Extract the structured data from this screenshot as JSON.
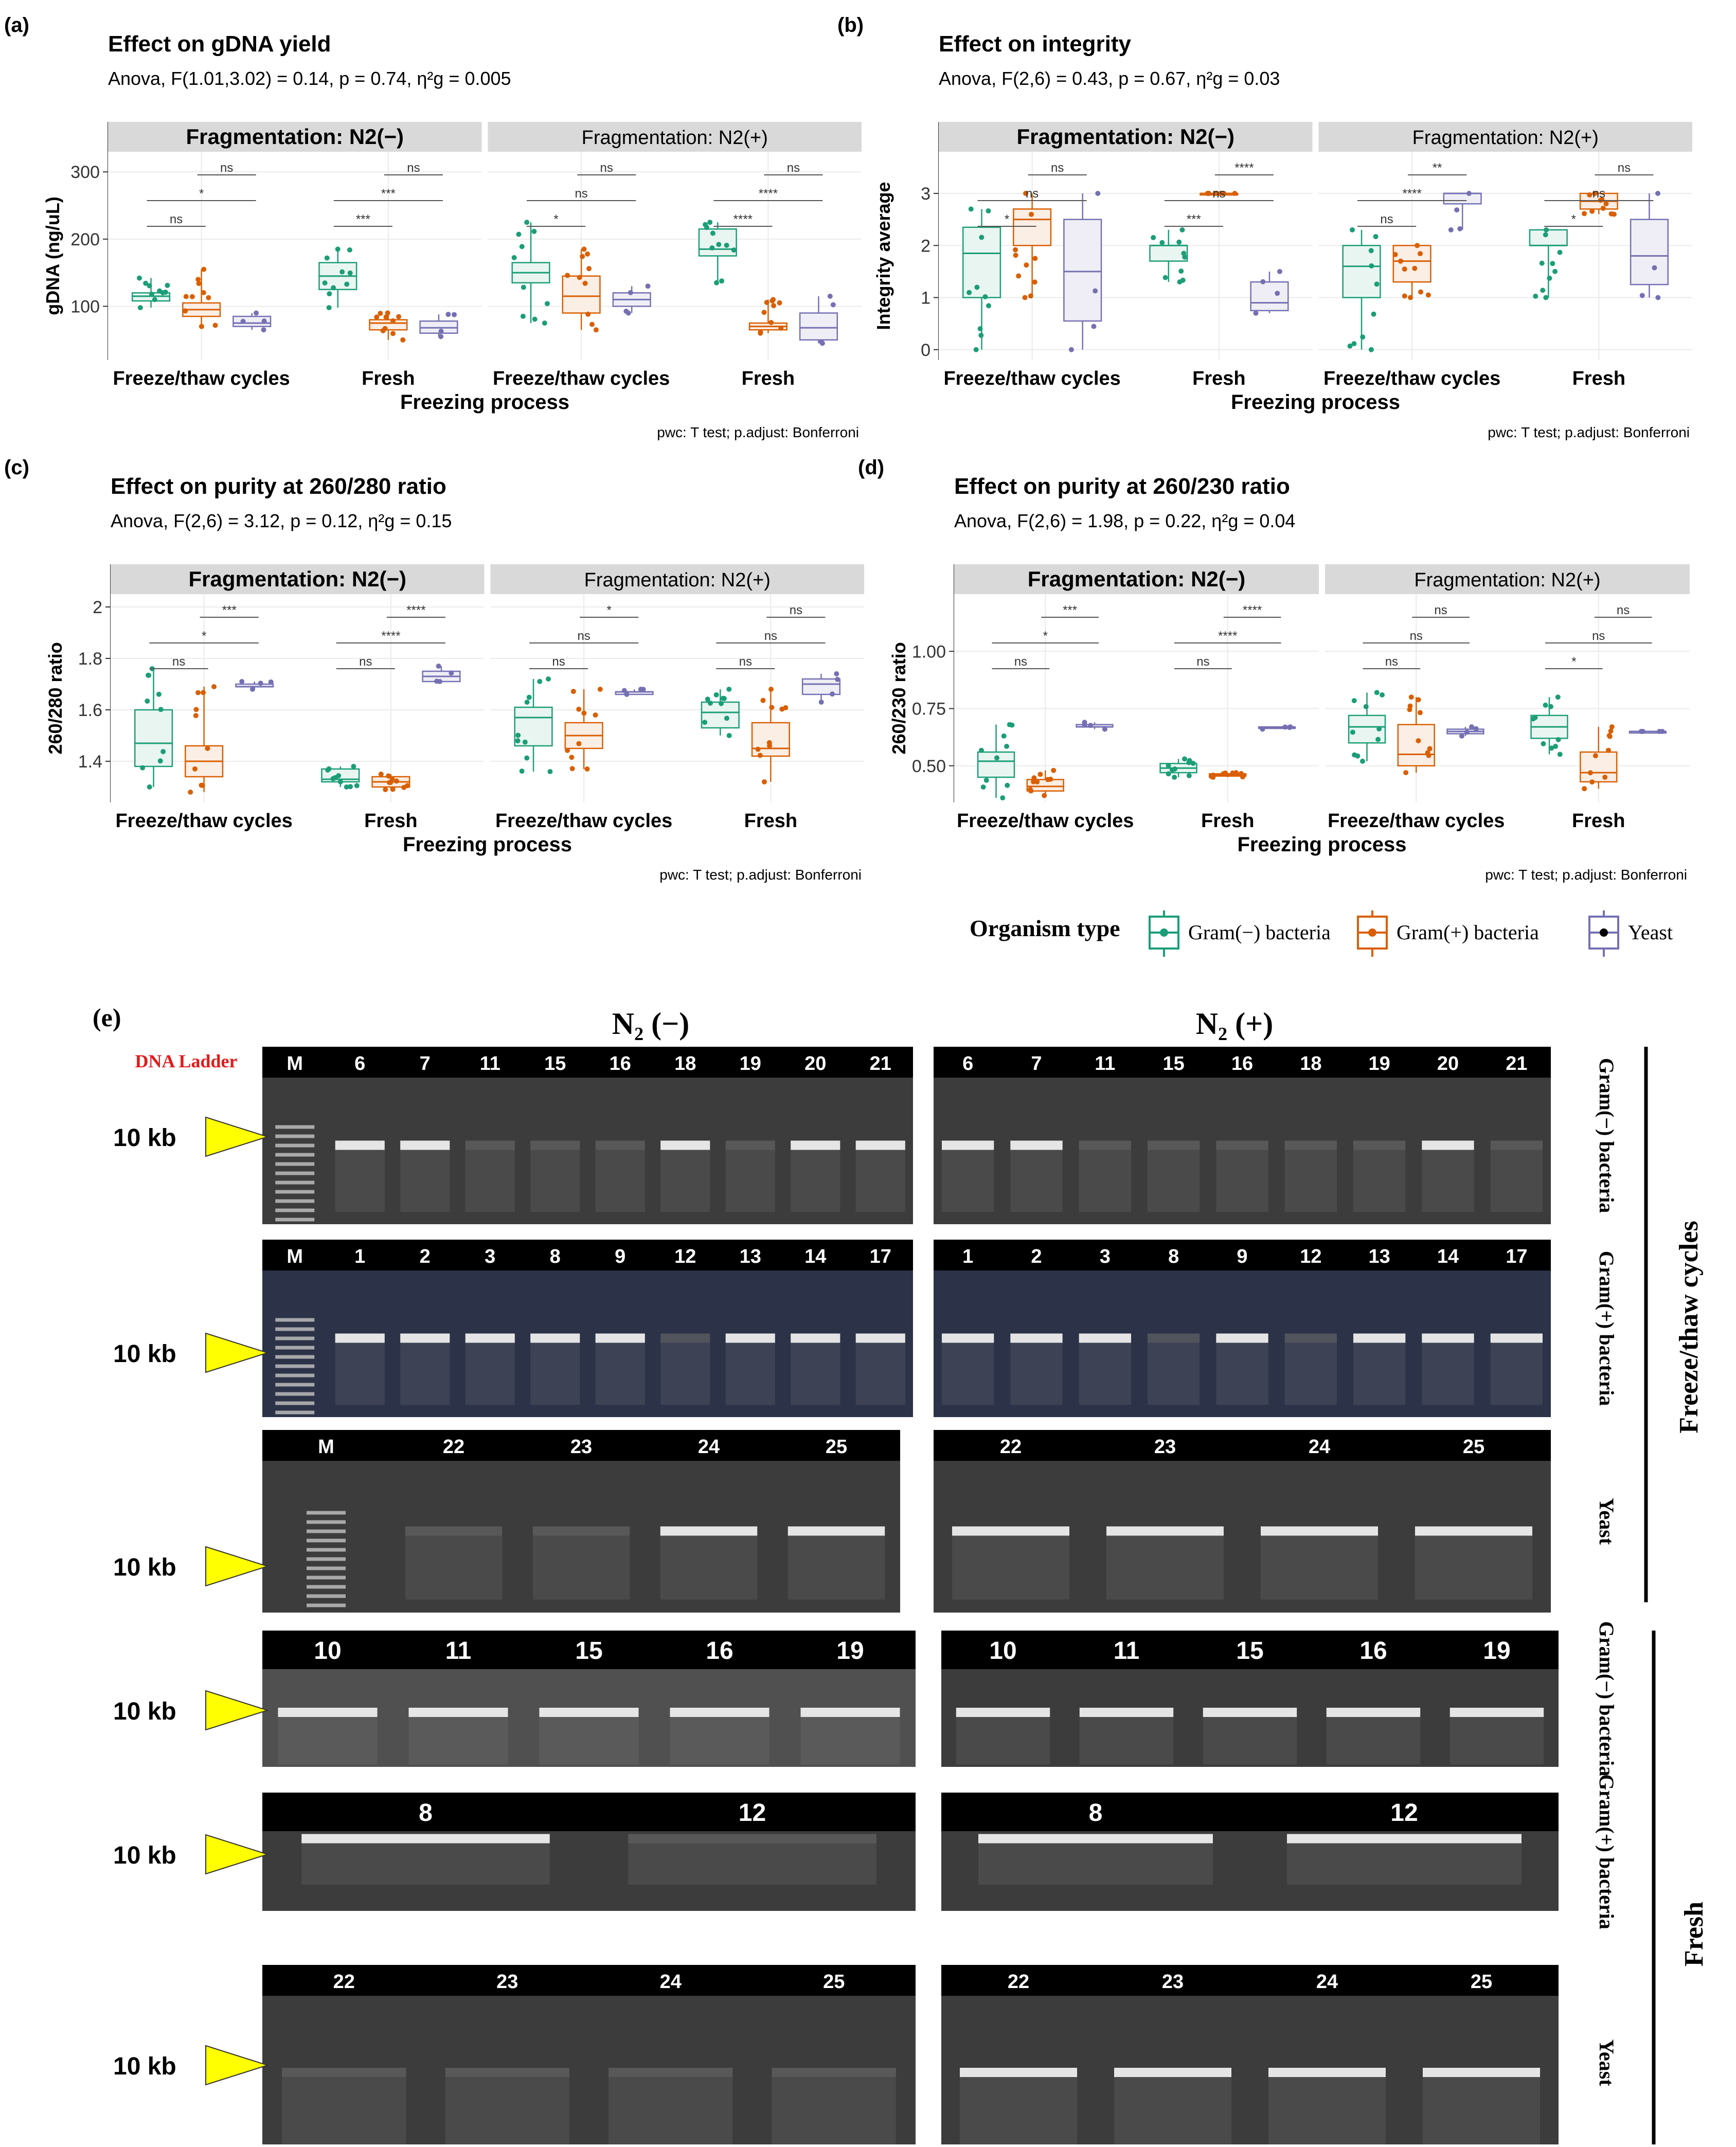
{
  "chart_data": [
    {
      "panel_label": "(a)",
      "type": "boxplot",
      "title": "Effect on gDNA yield",
      "anova": "Anova, F(1.01,3.02) = 0.14, p = 0.74, η²g = 0.005",
      "facets": [
        "Fragmentation: N2(−)",
        "Fragmentation: N2(+)"
      ],
      "categories": [
        "Freeze/thaw cycles",
        "Fresh"
      ],
      "xlabel": "Freezing process",
      "ylabel": "gDNA (ng/uL)",
      "ylim": [
        20,
        330
      ],
      "yticks": [
        100,
        200,
        300
      ],
      "footnote": "pwc: T test; p.adjust: Bonferroni",
      "series": [
        "Gram(−) bacteria",
        "Gram(+) bacteria",
        "Yeast"
      ],
      "boxes": [
        [
          [
            [
              98,
              108,
              115,
              120,
              142
            ],
            [
              70,
              85,
              95,
              105,
              155
            ],
            [
              65,
              70,
              75,
              85,
              90
            ]
          ],
          [
            [
              98,
              125,
              145,
              165,
              185
            ],
            [
              50,
              65,
              75,
              80,
              90
            ],
            [
              55,
              60,
              68,
              78,
              88
            ]
          ]
        ],
        [
          [
            [
              75,
              135,
              150,
              165,
              225
            ],
            [
              65,
              90,
              115,
              145,
              185
            ],
            [
              90,
              100,
              110,
              120,
              130
            ]
          ],
          [
            [
              135,
              175,
              185,
              215,
              225
            ],
            [
              60,
              65,
              70,
              75,
              110
            ],
            [
              45,
              50,
              68,
              90,
              115
            ]
          ]
        ]
      ],
      "significance": [
        [
          [
            {
              "pair": [
                0,
                1
              ],
              "label": "ns"
            },
            {
              "pair": [
                0,
                2
              ],
              "label": "*"
            },
            {
              "pair": [
                1,
                2
              ],
              "label": "ns"
            }
          ],
          [
            {
              "pair": [
                0,
                1
              ],
              "label": "***"
            },
            {
              "pair": [
                0,
                2
              ],
              "label": "***"
            },
            {
              "pair": [
                1,
                2
              ],
              "label": "ns"
            }
          ]
        ],
        [
          [
            {
              "pair": [
                0,
                1
              ],
              "label": "*"
            },
            {
              "pair": [
                0,
                2
              ],
              "label": "ns"
            },
            {
              "pair": [
                1,
                2
              ],
              "label": "ns"
            }
          ],
          [
            {
              "pair": [
                0,
                1
              ],
              "label": "****"
            },
            {
              "pair": [
                0,
                2
              ],
              "label": "****"
            },
            {
              "pair": [
                1,
                2
              ],
              "label": "ns"
            }
          ]
        ]
      ]
    },
    {
      "panel_label": "(b)",
      "type": "boxplot",
      "title": "Effect on integrity",
      "anova": "Anova, F(2,6) = 0.43, p = 0.67, η²g = 0.03",
      "facets": [
        "Fragmentation: N2(−)",
        "Fragmentation: N2(+)"
      ],
      "categories": [
        "Freeze/thaw cycles",
        "Fresh"
      ],
      "xlabel": "Freezing process",
      "ylabel": "Integrity average",
      "ylim": [
        -0.2,
        3.8
      ],
      "yticks": [
        0,
        1,
        2,
        3
      ],
      "footnote": "pwc: T test; p.adjust: Bonferroni",
      "series": [
        "Gram(−) bacteria",
        "Gram(+) bacteria",
        "Yeast"
      ],
      "boxes": [
        [
          [
            [
              0,
              1,
              1.85,
              2.35,
              2.7
            ],
            [
              1,
              2,
              2.5,
              2.7,
              3
            ],
            [
              0,
              0.55,
              1.5,
              2.5,
              3
            ]
          ],
          [
            [
              1.3,
              1.7,
              2,
              2,
              2.3
            ],
            [
              3,
              3,
              3,
              3,
              3
            ],
            [
              0.7,
              0.75,
              0.9,
              1.3,
              1.5
            ]
          ]
        ],
        [
          [
            [
              0,
              1,
              1.6,
              2,
              2.3
            ],
            [
              1,
              1.3,
              1.7,
              2,
              2
            ],
            [
              2.3,
              2.8,
              3,
              3,
              3
            ]
          ],
          [
            [
              1,
              2,
              2,
              2.3,
              2.3
            ],
            [
              2.6,
              2.7,
              2.85,
              3,
              3
            ],
            [
              1,
              1.25,
              1.8,
              2.5,
              3
            ]
          ]
        ]
      ],
      "significance": [
        [
          [
            {
              "pair": [
                0,
                1
              ],
              "label": "*"
            },
            {
              "pair": [
                0,
                2
              ],
              "label": "ns"
            },
            {
              "pair": [
                1,
                2
              ],
              "label": "ns"
            }
          ],
          [
            {
              "pair": [
                0,
                1
              ],
              "label": "***"
            },
            {
              "pair": [
                0,
                2
              ],
              "label": "ns"
            },
            {
              "pair": [
                1,
                2
              ],
              "label": "****"
            }
          ]
        ],
        [
          [
            {
              "pair": [
                0,
                1
              ],
              "label": "ns"
            },
            {
              "pair": [
                0,
                2
              ],
              "label": "****"
            },
            {
              "pair": [
                1,
                2
              ],
              "label": "**"
            }
          ],
          [
            {
              "pair": [
                0,
                1
              ],
              "label": "*"
            },
            {
              "pair": [
                0,
                2
              ],
              "label": "ns"
            },
            {
              "pair": [
                1,
                2
              ],
              "label": "ns"
            }
          ]
        ]
      ]
    },
    {
      "panel_label": "(c)",
      "type": "boxplot",
      "title": "Effect on purity at 260/280 ratio",
      "anova": "Anova, F(2,6) = 3.12, p = 0.12, η²g = 0.15",
      "facets": [
        "Fragmentation: N2(−)",
        "Fragmentation: N2(+)"
      ],
      "categories": [
        "Freeze/thaw cycles",
        "Fresh"
      ],
      "xlabel": "Freezing process",
      "ylabel": "260/280 ratio",
      "ylim": [
        1.24,
        2.05
      ],
      "yticks": [
        1.4,
        1.6,
        1.8,
        2.0
      ],
      "footnote": "pwc: T test; p.adjust: Bonferroni",
      "series": [
        "Gram(−) bacteria",
        "Gram(+) bacteria",
        "Yeast"
      ],
      "boxes": [
        [
          [
            [
              1.3,
              1.38,
              1.47,
              1.6,
              1.76
            ],
            [
              1.28,
              1.34,
              1.4,
              1.46,
              1.69
            ],
            [
              1.68,
              1.69,
              1.69,
              1.7,
              1.71
            ]
          ],
          [
            [
              1.3,
              1.32,
              1.33,
              1.37,
              1.38
            ],
            [
              1.29,
              1.3,
              1.32,
              1.34,
              1.35
            ],
            [
              1.71,
              1.71,
              1.73,
              1.75,
              1.77
            ]
          ]
        ],
        [
          [
            [
              1.36,
              1.46,
              1.57,
              1.61,
              1.72
            ],
            [
              1.37,
              1.45,
              1.5,
              1.55,
              1.68
            ],
            [
              1.66,
              1.66,
              1.67,
              1.67,
              1.68
            ]
          ],
          [
            [
              1.5,
              1.53,
              1.59,
              1.63,
              1.68
            ],
            [
              1.32,
              1.42,
              1.45,
              1.55,
              1.68
            ],
            [
              1.63,
              1.66,
              1.7,
              1.72,
              1.74
            ]
          ]
        ]
      ],
      "significance": [
        [
          [
            {
              "pair": [
                0,
                1
              ],
              "label": "ns"
            },
            {
              "pair": [
                0,
                2
              ],
              "label": "*"
            },
            {
              "pair": [
                1,
                2
              ],
              "label": "***"
            }
          ],
          [
            {
              "pair": [
                0,
                1
              ],
              "label": "ns"
            },
            {
              "pair": [
                0,
                2
              ],
              "label": "****"
            },
            {
              "pair": [
                1,
                2
              ],
              "label": "****"
            }
          ]
        ],
        [
          [
            {
              "pair": [
                0,
                1
              ],
              "label": "ns"
            },
            {
              "pair": [
                0,
                2
              ],
              "label": "ns"
            },
            {
              "pair": [
                1,
                2
              ],
              "label": "*"
            }
          ],
          [
            {
              "pair": [
                0,
                1
              ],
              "label": "ns"
            },
            {
              "pair": [
                0,
                2
              ],
              "label": "ns"
            },
            {
              "pair": [
                1,
                2
              ],
              "label": "ns"
            }
          ]
        ]
      ]
    },
    {
      "panel_label": "(d)",
      "type": "boxplot",
      "title": "Effect on purity at 260/230 ratio",
      "anova": "Anova, F(2,6) = 1.98, p = 0.22, η²g = 0.04",
      "facets": [
        "Fragmentation: N2(−)",
        "Fragmentation: N2(+)"
      ],
      "categories": [
        "Freeze/thaw cycles",
        "Fresh"
      ],
      "xlabel": "Freezing process",
      "ylabel": "260/230 ratio",
      "ylim": [
        0.34,
        1.25
      ],
      "yticks": [
        0.5,
        0.75,
        1.0
      ],
      "yticklabels": [
        "0.50",
        "0.75",
        "1.00"
      ],
      "footnote": "pwc: T test; p.adjust: Bonferroni",
      "series": [
        "Gram(−) bacteria",
        "Gram(+) bacteria",
        "Yeast"
      ],
      "boxes": [
        [
          [
            [
              0.36,
              0.45,
              0.52,
              0.56,
              0.68
            ],
            [
              0.37,
              0.39,
              0.41,
              0.44,
              0.48
            ],
            [
              0.66,
              0.67,
              0.67,
              0.68,
              0.69
            ]
          ],
          [
            [
              0.45,
              0.47,
              0.49,
              0.51,
              0.53
            ],
            [
              0.45,
              0.455,
              0.46,
              0.465,
              0.47
            ],
            [
              0.66,
              0.665,
              0.667,
              0.67,
              0.67
            ]
          ]
        ],
        [
          [
            [
              0.52,
              0.6,
              0.67,
              0.72,
              0.82
            ],
            [
              0.47,
              0.5,
              0.55,
              0.68,
              0.8
            ],
            [
              0.63,
              0.64,
              0.65,
              0.66,
              0.67
            ]
          ],
          [
            [
              0.55,
              0.62,
              0.67,
              0.72,
              0.8
            ],
            [
              0.4,
              0.43,
              0.47,
              0.56,
              0.67
            ],
            [
              0.65,
              0.65,
              0.65,
              0.65,
              0.65
            ]
          ]
        ]
      ],
      "significance": [
        [
          [
            {
              "pair": [
                0,
                1
              ],
              "label": "ns"
            },
            {
              "pair": [
                0,
                2
              ],
              "label": "*"
            },
            {
              "pair": [
                1,
                2
              ],
              "label": "***"
            }
          ],
          [
            {
              "pair": [
                0,
                1
              ],
              "label": "ns"
            },
            {
              "pair": [
                0,
                2
              ],
              "label": "****"
            },
            {
              "pair": [
                1,
                2
              ],
              "label": "****"
            }
          ]
        ],
        [
          [
            {
              "pair": [
                0,
                1
              ],
              "label": "ns"
            },
            {
              "pair": [
                0,
                2
              ],
              "label": "ns"
            },
            {
              "pair": [
                1,
                2
              ],
              "label": "ns"
            }
          ],
          [
            {
              "pair": [
                0,
                1
              ],
              "label": "*"
            },
            {
              "pair": [
                0,
                2
              ],
              "label": "ns"
            },
            {
              "pair": [
                1,
                2
              ],
              "label": "ns"
            }
          ]
        ]
      ]
    }
  ],
  "colors": {
    "gram_neg": "#1b9e77",
    "gram_pos": "#d95f02",
    "yeast": "#7570b3",
    "facet_bg": "#d9d9d9",
    "ladder_label": "#e31a1c",
    "arrow": "#ffff00"
  },
  "legend": {
    "title": "Organism type",
    "items": [
      "Gram(−) bacteria",
      "Gram(+) bacteria",
      "Yeast"
    ]
  },
  "gel": {
    "panel_label": "(e)",
    "col_heads": [
      "N₂ (−)",
      "N₂ (+)"
    ],
    "ladder_title": "DNA Ladder",
    "marker_label": "10 kb",
    "side_groups": [
      "Freeze/thaw cycles",
      "Fresh"
    ],
    "rows": [
      {
        "type": "Gram(−) bacteria",
        "left": [
          "M",
          "6",
          "7",
          "11",
          "15",
          "16",
          "18",
          "19",
          "20",
          "21"
        ],
        "right": [
          "6",
          "7",
          "11",
          "15",
          "16",
          "18",
          "19",
          "20",
          "21"
        ]
      },
      {
        "type": "Gram(+) bacteria",
        "left": [
          "M",
          "1",
          "2",
          "3",
          "8",
          "9",
          "12",
          "13",
          "14",
          "17"
        ],
        "right": [
          "1",
          "2",
          "3",
          "8",
          "9",
          "12",
          "13",
          "14",
          "17"
        ]
      },
      {
        "type": "Yeast",
        "left": [
          "M",
          "22",
          "23",
          "24",
          "25"
        ],
        "right": [
          "22",
          "23",
          "24",
          "25"
        ]
      },
      {
        "type": "Gram(−) bacteria",
        "left": [
          "10",
          "11",
          "15",
          "16",
          "19"
        ],
        "right": [
          "10",
          "11",
          "15",
          "16",
          "19"
        ]
      },
      {
        "type": "Gram(+) bacteria",
        "left": [
          "8",
          "12"
        ],
        "right": [
          "8",
          "12"
        ]
      },
      {
        "type": "Yeast",
        "left": [
          "22",
          "23",
          "24",
          "25"
        ],
        "right": [
          "22",
          "23",
          "24",
          "25"
        ]
      }
    ]
  }
}
